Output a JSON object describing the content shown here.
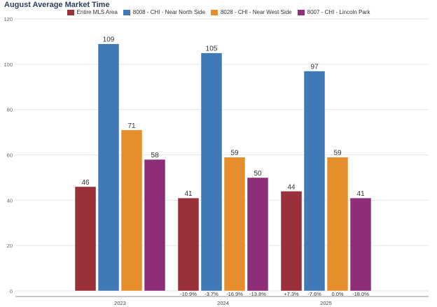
{
  "chart_data": {
    "type": "bar",
    "title": "August Average Market Time",
    "xlabel": "",
    "ylabel": "",
    "ylim": [
      0,
      120
    ],
    "yticks": [
      0,
      20,
      40,
      60,
      80,
      100,
      120
    ],
    "grid": true,
    "legend_position": "top-center",
    "categories": [
      "2023",
      "2024",
      "2025"
    ],
    "series": [
      {
        "name": "Entire MLS Area",
        "color": "#99303a",
        "values": [
          46,
          41,
          44
        ],
        "changes": [
          "",
          "-10.9%",
          "+7.3%"
        ]
      },
      {
        "name": "8008 - CHI - Near North Side",
        "color": "#4178b6",
        "values": [
          109,
          105,
          97
        ],
        "changes": [
          "",
          "-3.7%",
          "-7.6%"
        ]
      },
      {
        "name": "8028 - CHI - Near West Side",
        "color": "#e78e2c",
        "values": [
          71,
          59,
          59
        ],
        "changes": [
          "",
          "-16.9%",
          "0.0%"
        ]
      },
      {
        "name": "8007 - CHI - Lincoln Park",
        "color": "#8e2e78",
        "values": [
          58,
          50,
          41
        ],
        "changes": [
          "",
          "-13.8%",
          "-18.0%"
        ]
      }
    ]
  }
}
